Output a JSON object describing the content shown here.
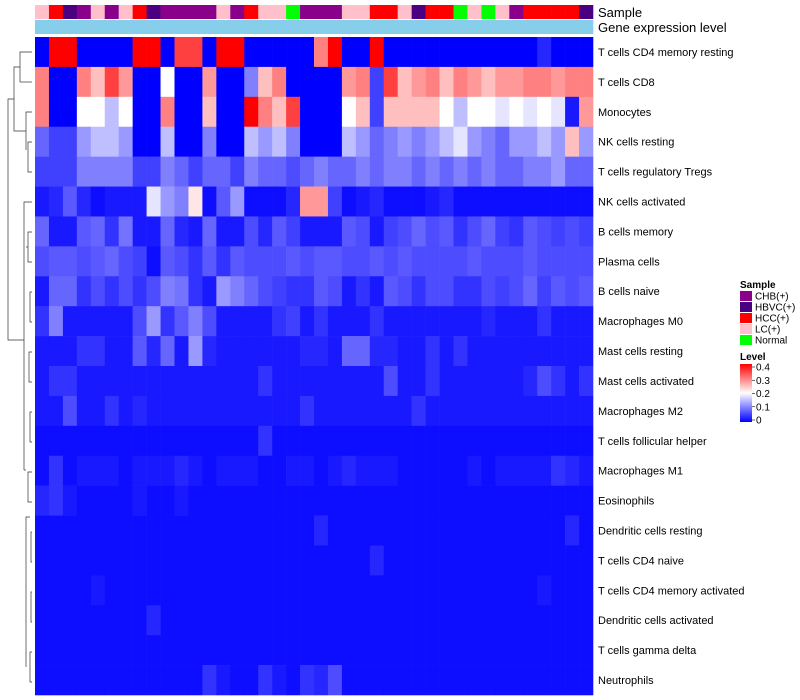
{
  "chart_data": {
    "type": "heatmap",
    "annotation_tracks": [
      "Sample",
      "Gene expression level"
    ],
    "samples": [
      "LC(+)",
      "HCC(+)",
      "HBVC(+)",
      "CHB(+)",
      "LC(+)",
      "CHB(+)",
      "LC(+)",
      "HCC(+)",
      "HBVC(+)",
      "CHB(+)",
      "CHB(+)",
      "CHB(+)",
      "CHB(+)",
      "LC(+)",
      "CHB(+)",
      "HCC(+)",
      "LC(+)",
      "LC(+)",
      "Normal",
      "CHB(+)",
      "CHB(+)",
      "CHB(+)",
      "LC(+)",
      "LC(+)",
      "HCC(+)",
      "HCC(+)",
      "LC(+)",
      "HBVC(+)",
      "HCC(+)",
      "HCC(+)",
      "Normal",
      "LC(+)",
      "Normal",
      "LC(+)",
      "CHB(+)",
      "HCC(+)",
      "HCC(+)",
      "HCC(+)",
      "HCC(+)",
      "HBVC(+)"
    ],
    "rows": [
      "T cells CD4 memory resting",
      "T cells CD8",
      "Monocytes",
      "NK cells resting",
      "T cells regulatory  Tregs",
      "NK cells activated",
      "B cells memory",
      "Plasma cells",
      "B cells naive",
      "Macrophages M0",
      "Mast cells resting",
      "Mast cells activated",
      "Macrophages M2",
      "T cells follicular helper",
      "Macrophages M1",
      "Eosinophils",
      "Dendritic cells resting",
      "T cells CD4 naive",
      "T cells CD4 memory activated",
      "Dendritic cells activated",
      "T cells gamma delta",
      "Neutrophils"
    ],
    "values": [
      [
        0,
        0.4,
        0.4,
        0,
        0,
        0,
        0,
        0.4,
        0.4,
        0,
        0.35,
        0.35,
        0,
        0.4,
        0.4,
        0,
        0,
        0,
        0,
        0,
        0.3,
        0.4,
        0,
        0,
        0.4,
        0,
        0,
        0,
        0,
        0,
        0,
        0,
        0,
        0,
        0,
        0,
        0.03,
        0,
        0,
        0
      ],
      [
        0.3,
        0,
        0,
        0.3,
        0.25,
        0.35,
        0.28,
        0,
        0,
        0.2,
        0,
        0,
        0.28,
        0,
        0,
        0.1,
        0.25,
        0.3,
        0,
        0,
        0,
        0,
        0.28,
        0.3,
        0.05,
        0.35,
        0.25,
        0.28,
        0.3,
        0.25,
        0.3,
        0.28,
        0.25,
        0.28,
        0.28,
        0.3,
        0.3,
        0.28,
        0.3,
        0.3
      ],
      [
        0.3,
        0,
        0,
        0.2,
        0.2,
        0.15,
        0.2,
        0,
        0,
        0.3,
        0,
        0,
        0.25,
        0,
        0,
        0.4,
        0.3,
        0.25,
        0.35,
        0,
        0,
        0,
        0.2,
        0.25,
        0.05,
        0.25,
        0.25,
        0.25,
        0.25,
        0.2,
        0.15,
        0.2,
        0.2,
        0.18,
        0.2,
        0.18,
        0.2,
        0.18,
        0.02,
        0.28
      ],
      [
        0.08,
        0.05,
        0.05,
        0.12,
        0.15,
        0.15,
        0.12,
        0,
        0,
        0.15,
        0,
        0,
        0.1,
        0,
        0,
        0.15,
        0.12,
        0.15,
        0.1,
        0,
        0,
        0,
        0.15,
        0.12,
        0.08,
        0.1,
        0.12,
        0.1,
        0.12,
        0.15,
        0.18,
        0.12,
        0.1,
        0.08,
        0.12,
        0.12,
        0.15,
        0.12,
        0.25,
        0.12
      ],
      [
        0.05,
        0.05,
        0.05,
        0.1,
        0.1,
        0.1,
        0.1,
        0.05,
        0.05,
        0.1,
        0.08,
        0.05,
        0.08,
        0.08,
        0.05,
        0.1,
        0.08,
        0.08,
        0.06,
        0.08,
        0.1,
        0.08,
        0.08,
        0.1,
        0.08,
        0.1,
        0.1,
        0.08,
        0.1,
        0.08,
        0.1,
        0.08,
        0.1,
        0.08,
        0.08,
        0.1,
        0.1,
        0.12,
        0.08,
        0.08
      ],
      [
        0.02,
        0.03,
        0.07,
        0.03,
        0.01,
        0.02,
        0.02,
        0.02,
        0.18,
        0.12,
        0.1,
        0.22,
        0.01,
        0.07,
        0.12,
        0.01,
        0.01,
        0.01,
        0.03,
        0.28,
        0.28,
        0.05,
        0.01,
        0.02,
        0.03,
        0.01,
        0.01,
        0.01,
        0.02,
        0.03,
        0.01,
        0.01,
        0.01,
        0.01,
        0.01,
        0.01,
        0.01,
        0.01,
        0.01,
        0.01
      ],
      [
        0.08,
        0.02,
        0.02,
        0.07,
        0.08,
        0.04,
        0.09,
        0.02,
        0.02,
        0.08,
        0.03,
        0.02,
        0.08,
        0.02,
        0.02,
        0.06,
        0.03,
        0.07,
        0.05,
        0.02,
        0.02,
        0.02,
        0.07,
        0.06,
        0.02,
        0.05,
        0.06,
        0.08,
        0.06,
        0.07,
        0.04,
        0.06,
        0.08,
        0.05,
        0.04,
        0.07,
        0.06,
        0.05,
        0.06,
        0.05
      ],
      [
        0.06,
        0.07,
        0.07,
        0.06,
        0.07,
        0.08,
        0.06,
        0.05,
        0.01,
        0.07,
        0.06,
        0.04,
        0.07,
        0.04,
        0.07,
        0.06,
        0.06,
        0.06,
        0.07,
        0.06,
        0.07,
        0.07,
        0.06,
        0.06,
        0.07,
        0.06,
        0.07,
        0.06,
        0.06,
        0.06,
        0.06,
        0.07,
        0.06,
        0.06,
        0.06,
        0.07,
        0.06,
        0.06,
        0.06,
        0.06
      ],
      [
        0.02,
        0.08,
        0.08,
        0.04,
        0.06,
        0.04,
        0.06,
        0.04,
        0.06,
        0.1,
        0.09,
        0.04,
        0.02,
        0.12,
        0.1,
        0.08,
        0.06,
        0.05,
        0.04,
        0.04,
        0.07,
        0.06,
        0.02,
        0.04,
        0.02,
        0.07,
        0.06,
        0.04,
        0.06,
        0.06,
        0.04,
        0.04,
        0.06,
        0.05,
        0.06,
        0.08,
        0.05,
        0.07,
        0.06,
        0.07
      ],
      [
        0.04,
        0.1,
        0.02,
        0.02,
        0.02,
        0.02,
        0.02,
        0.06,
        0.12,
        0.04,
        0.07,
        0.1,
        0.06,
        0.02,
        0.02,
        0.02,
        0.02,
        0.04,
        0.05,
        0.02,
        0.04,
        0.02,
        0.02,
        0.02,
        0.04,
        0.02,
        0.02,
        0.02,
        0.02,
        0.02,
        0.02,
        0.02,
        0.03,
        0.02,
        0.02,
        0.02,
        0.04,
        0.02,
        0.02,
        0.02
      ],
      [
        0.02,
        0.02,
        0.02,
        0.04,
        0.04,
        0.02,
        0.02,
        0.07,
        0.03,
        0.08,
        0.02,
        0.12,
        0.03,
        0.02,
        0.02,
        0.02,
        0.02,
        0.02,
        0.02,
        0.03,
        0.03,
        0.02,
        0.08,
        0.08,
        0.03,
        0.03,
        0.02,
        0.02,
        0.04,
        0.02,
        0.04,
        0.02,
        0.02,
        0.02,
        0.02,
        0.02,
        0.02,
        0.02,
        0.02,
        0.02
      ],
      [
        0.02,
        0.04,
        0.04,
        0.02,
        0.02,
        0.02,
        0.02,
        0.02,
        0.02,
        0.02,
        0.02,
        0.02,
        0.02,
        0.02,
        0.02,
        0.02,
        0.04,
        0.02,
        0.02,
        0.02,
        0.02,
        0.02,
        0.02,
        0.02,
        0.02,
        0.06,
        0.02,
        0.02,
        0.04,
        0.02,
        0.02,
        0.02,
        0.02,
        0.02,
        0.02,
        0.03,
        0.06,
        0.04,
        0.02,
        0.04
      ],
      [
        0.02,
        0.02,
        0.06,
        0.02,
        0.02,
        0.04,
        0.02,
        0.03,
        0.02,
        0.02,
        0.02,
        0.02,
        0.02,
        0.02,
        0.02,
        0.02,
        0.02,
        0.02,
        0.02,
        0.04,
        0.02,
        0.02,
        0.02,
        0.02,
        0.02,
        0.02,
        0.02,
        0.04,
        0.02,
        0.02,
        0.02,
        0.02,
        0.02,
        0.02,
        0.02,
        0.02,
        0.02,
        0.02,
        0.02,
        0.02
      ],
      [
        0.01,
        0.01,
        0.01,
        0.01,
        0.01,
        0.01,
        0.01,
        0.01,
        0.01,
        0.01,
        0.01,
        0.01,
        0.01,
        0.01,
        0.01,
        0.01,
        0.04,
        0.01,
        0.01,
        0.01,
        0.01,
        0.01,
        0.01,
        0.01,
        0.01,
        0.01,
        0.01,
        0.01,
        0.01,
        0.01,
        0.01,
        0.01,
        0.01,
        0.01,
        0.01,
        0.01,
        0.01,
        0.01,
        0.01,
        0.01
      ],
      [
        0.01,
        0.04,
        0.01,
        0.02,
        0.02,
        0.02,
        0.01,
        0.02,
        0.02,
        0.02,
        0.03,
        0.02,
        0.01,
        0.02,
        0.02,
        0.02,
        0.01,
        0.01,
        0.02,
        0.02,
        0.01,
        0.02,
        0.03,
        0.02,
        0.02,
        0.02,
        0.01,
        0.01,
        0.01,
        0.01,
        0.01,
        0.02,
        0.01,
        0.02,
        0.02,
        0.02,
        0.02,
        0.04,
        0.03,
        0.02
      ],
      [
        0.03,
        0.04,
        0.02,
        0.01,
        0.01,
        0.01,
        0.01,
        0.02,
        0.01,
        0.01,
        0.02,
        0.01,
        0.01,
        0.01,
        0.01,
        0.01,
        0.01,
        0.01,
        0.01,
        0.01,
        0.01,
        0.01,
        0.01,
        0.01,
        0.01,
        0.01,
        0.01,
        0.01,
        0.01,
        0.01,
        0.01,
        0.01,
        0.01,
        0.01,
        0.01,
        0.01,
        0.01,
        0.01,
        0.01,
        0.01
      ],
      [
        0.01,
        0.01,
        0.01,
        0.01,
        0.01,
        0.01,
        0.01,
        0.01,
        0.01,
        0.01,
        0.01,
        0.01,
        0.01,
        0.01,
        0.01,
        0.01,
        0.01,
        0.01,
        0.01,
        0.01,
        0.03,
        0.01,
        0.01,
        0.01,
        0.01,
        0.01,
        0.01,
        0.01,
        0.01,
        0.01,
        0.01,
        0.01,
        0.01,
        0.01,
        0.01,
        0.01,
        0.01,
        0.01,
        0.03,
        0.01
      ],
      [
        0.01,
        0.01,
        0.01,
        0.01,
        0.01,
        0.01,
        0.01,
        0.01,
        0.01,
        0.01,
        0.01,
        0.01,
        0.01,
        0.01,
        0.01,
        0.01,
        0.01,
        0.01,
        0.01,
        0.01,
        0.01,
        0.01,
        0.01,
        0.01,
        0.03,
        0.01,
        0.01,
        0.01,
        0.01,
        0.01,
        0.01,
        0.01,
        0.01,
        0.01,
        0.01,
        0.01,
        0.01,
        0.01,
        0.01,
        0.01
      ],
      [
        0.01,
        0.01,
        0.01,
        0.01,
        0.02,
        0.01,
        0.01,
        0.01,
        0.01,
        0.01,
        0.01,
        0.01,
        0.01,
        0.01,
        0.01,
        0.01,
        0.01,
        0.01,
        0.01,
        0.01,
        0.01,
        0.01,
        0.01,
        0.01,
        0.01,
        0.01,
        0.01,
        0.01,
        0.01,
        0.01,
        0.01,
        0.01,
        0.01,
        0.01,
        0.01,
        0.01,
        0.02,
        0.01,
        0.01,
        0.01
      ],
      [
        0.01,
        0.01,
        0.01,
        0.01,
        0.01,
        0.01,
        0.01,
        0.01,
        0.03,
        0.01,
        0.01,
        0.01,
        0.01,
        0.01,
        0.01,
        0.01,
        0.01,
        0.01,
        0.01,
        0.01,
        0.01,
        0.01,
        0.01,
        0.01,
        0.01,
        0.01,
        0.01,
        0.01,
        0.01,
        0.01,
        0.01,
        0.01,
        0.01,
        0.01,
        0.01,
        0.01,
        0.01,
        0.01,
        0.01,
        0.01
      ],
      [
        0.01,
        0.01,
        0.01,
        0.01,
        0.01,
        0.01,
        0.01,
        0.01,
        0.01,
        0.01,
        0.01,
        0.01,
        0.01,
        0.01,
        0.01,
        0.01,
        0.01,
        0.01,
        0.01,
        0.01,
        0.01,
        0.01,
        0.01,
        0.01,
        0.01,
        0.01,
        0.01,
        0.01,
        0.01,
        0.01,
        0.01,
        0.01,
        0.01,
        0.01,
        0.01,
        0.01,
        0.01,
        0.01,
        0.01,
        0.01
      ],
      [
        0.01,
        0.01,
        0.01,
        0.01,
        0.01,
        0.01,
        0.01,
        0.01,
        0.01,
        0.01,
        0.01,
        0.01,
        0.04,
        0.02,
        0.01,
        0.01,
        0.04,
        0.02,
        0.01,
        0.04,
        0.03,
        0.06,
        0.01,
        0.01,
        0.01,
        0.01,
        0.01,
        0.01,
        0.01,
        0.01,
        0.01,
        0.01,
        0.01,
        0.01,
        0.01,
        0.01,
        0.01,
        0.01,
        0.01,
        0.01
      ]
    ],
    "legend": {
      "sample_title": "Sample",
      "sample_entries": [
        {
          "label": "CHB(+)",
          "color": "#8B008B"
        },
        {
          "label": "HBVC(+)",
          "color": "#4B0082"
        },
        {
          "label": "HCC(+)",
          "color": "#FF0000"
        },
        {
          "label": "LC(+)",
          "color": "#FFC0CB"
        },
        {
          "label": "Normal",
          "color": "#00FF00"
        }
      ],
      "level_title": "Level",
      "level_ticks": [
        "0.4",
        "0.3",
        "0.2",
        "0.1",
        "0"
      ],
      "level_range": [
        0,
        0.4
      ]
    },
    "colors": {
      "low": "#0000FF",
      "mid": "#FFFFFF",
      "high": "#FF0000",
      "expression_track": "#87CEEB",
      "dendrogram": "#333333"
    }
  }
}
